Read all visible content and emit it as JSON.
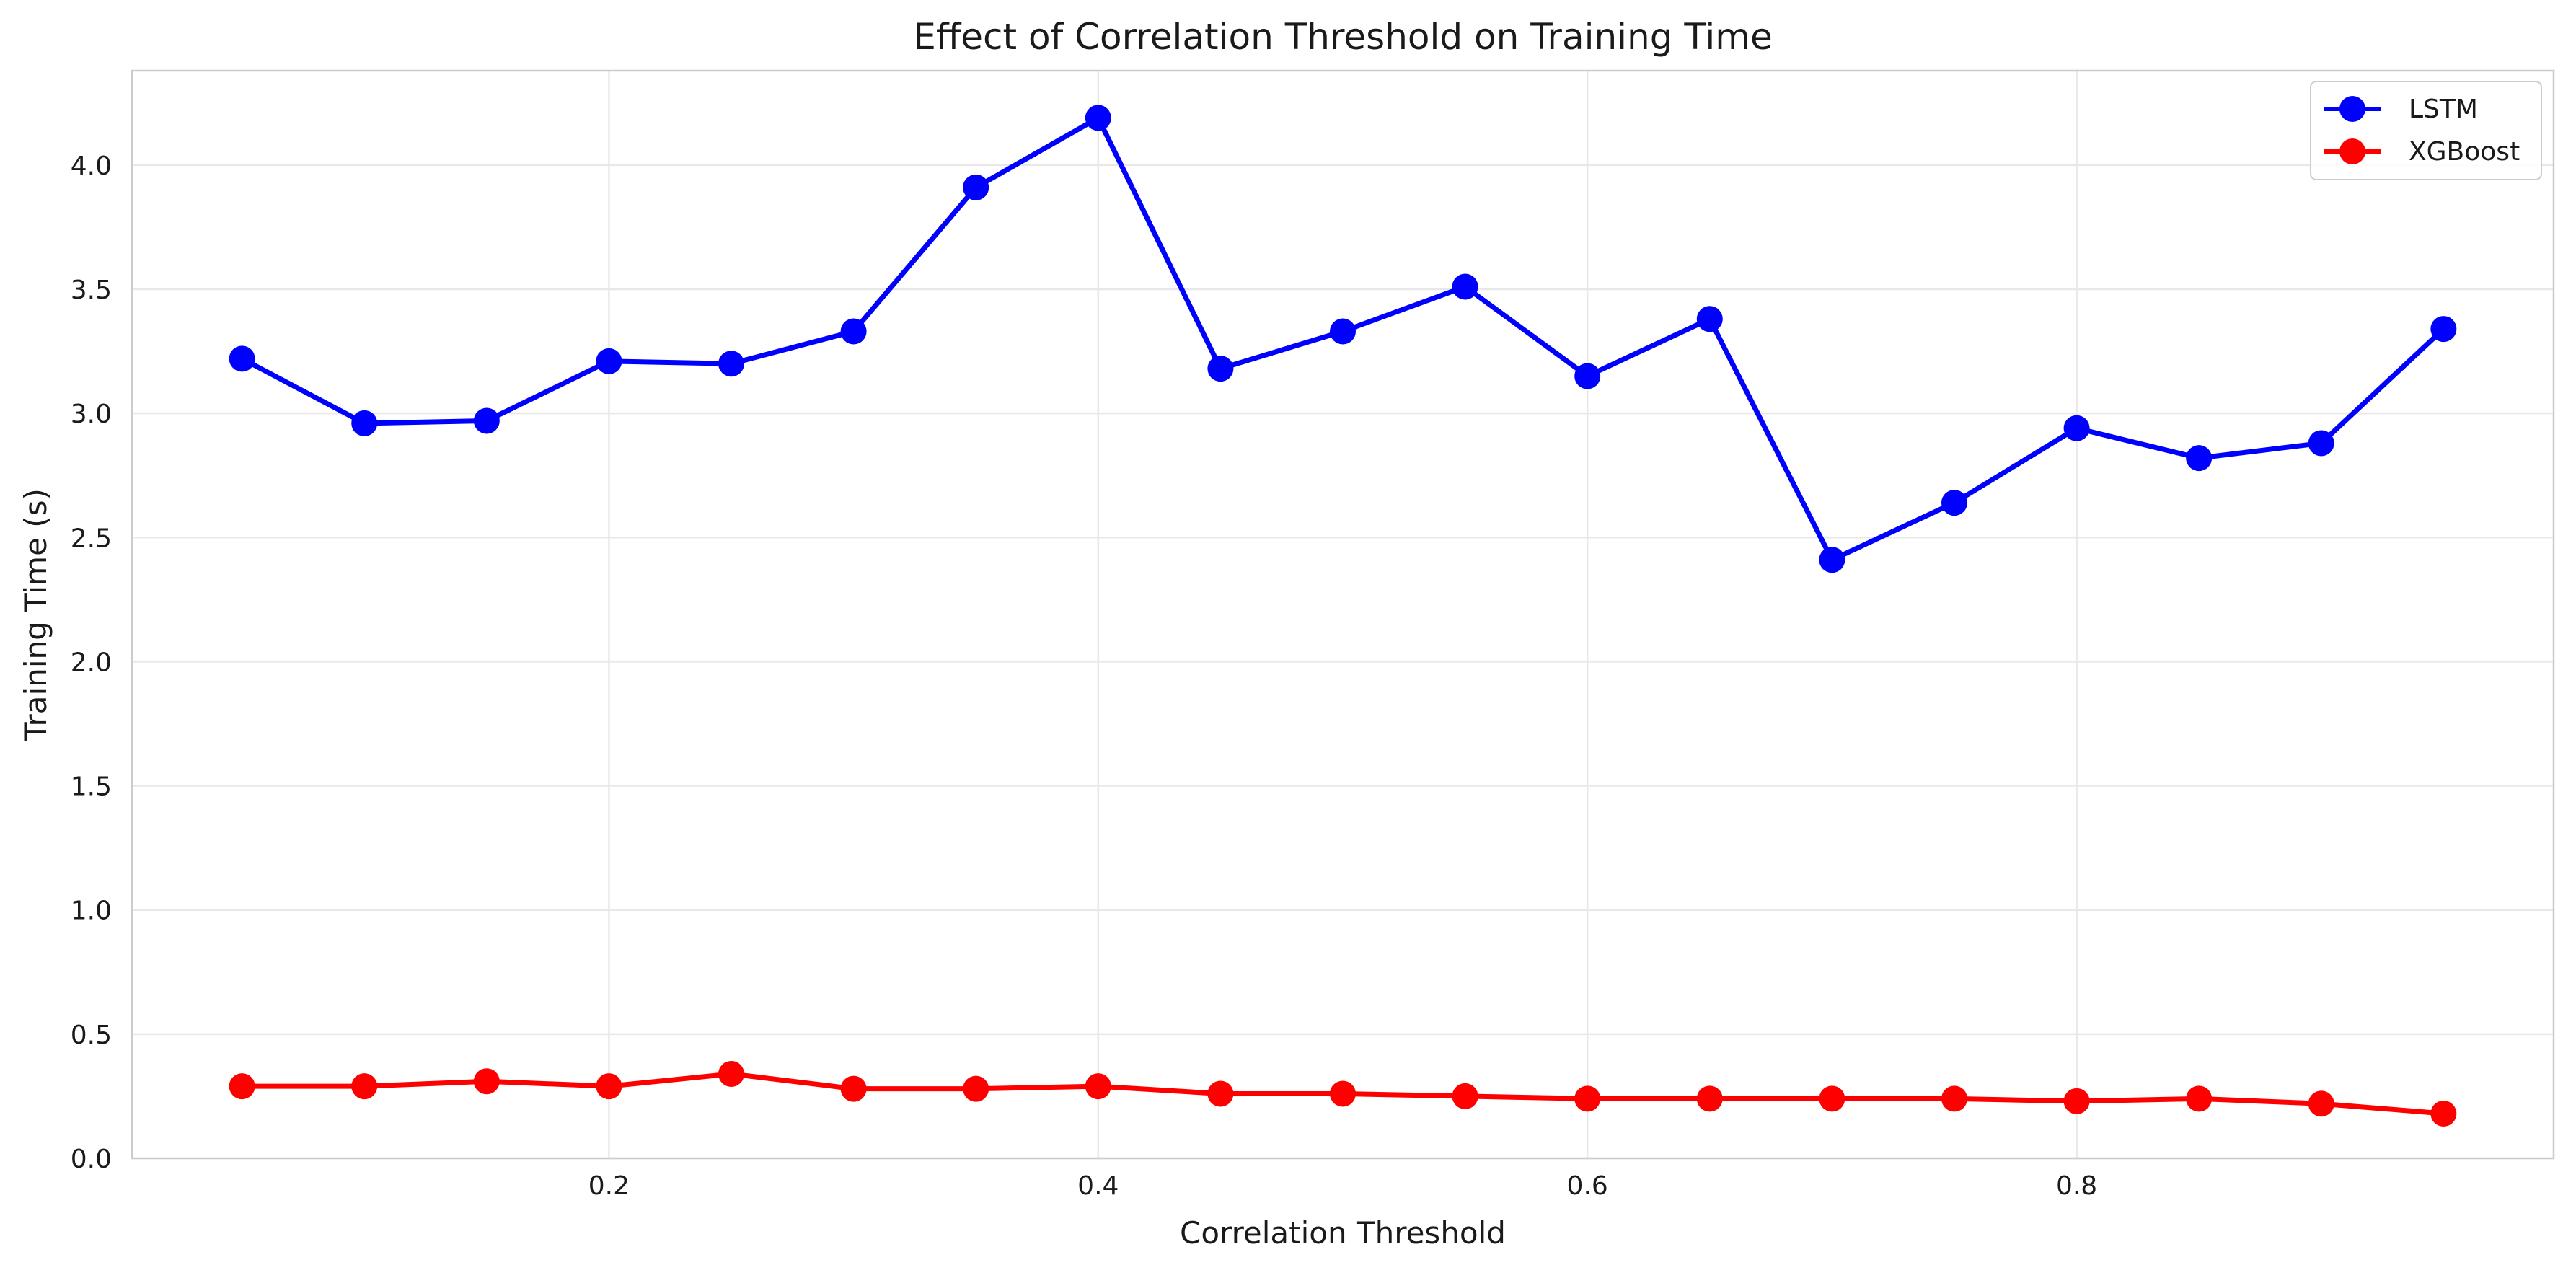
{
  "chart_data": {
    "type": "line",
    "title": "Effect of Correlation Threshold on Training Time",
    "xlabel": "Correlation Threshold",
    "ylabel": "Training Time (s)",
    "x": [
      0.05,
      0.1,
      0.15,
      0.2,
      0.25,
      0.3,
      0.35,
      0.4,
      0.45,
      0.5,
      0.55,
      0.6,
      0.65,
      0.7,
      0.75,
      0.8,
      0.85,
      0.9,
      0.95
    ],
    "xlim": [
      0.005,
      0.995
    ],
    "ylim": [
      0.0,
      4.38
    ],
    "xticks": [
      0.2,
      0.4,
      0.6,
      0.8
    ],
    "xtick_labels": [
      "0.2",
      "0.4",
      "0.6",
      "0.8"
    ],
    "yticks": [
      0.0,
      0.5,
      1.0,
      1.5,
      2.0,
      2.5,
      3.0,
      3.5,
      4.0
    ],
    "ytick_labels": [
      "0.0",
      "0.5",
      "1.0",
      "1.5",
      "2.0",
      "2.5",
      "3.0",
      "3.5",
      "4.0"
    ],
    "grid": true,
    "legend_position": "top-right",
    "series": [
      {
        "name": "LSTM",
        "color": "#0000ff",
        "marker": "circle",
        "values": [
          3.22,
          2.96,
          2.97,
          3.21,
          3.2,
          3.33,
          3.91,
          4.19,
          3.18,
          3.33,
          3.51,
          3.15,
          3.38,
          2.41,
          2.64,
          2.94,
          2.82,
          2.88,
          3.34
        ]
      },
      {
        "name": "XGBoost",
        "color": "#ff0000",
        "marker": "circle",
        "values": [
          0.29,
          0.29,
          0.31,
          0.29,
          0.34,
          0.28,
          0.28,
          0.29,
          0.26,
          0.26,
          0.25,
          0.24,
          0.24,
          0.24,
          0.24,
          0.23,
          0.24,
          0.22,
          0.18
        ]
      }
    ]
  }
}
